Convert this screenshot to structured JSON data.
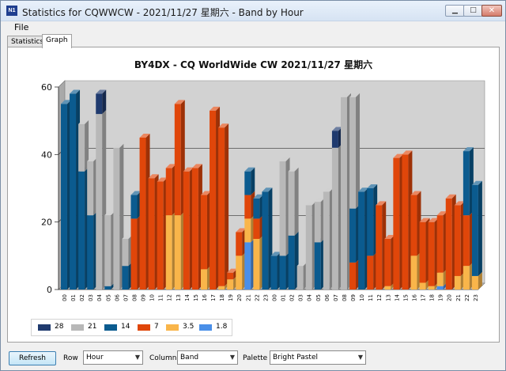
{
  "window": {
    "title": "Statistics for CQWWCW - 2021/11/27 星期六 - Band by Hour",
    "app_icon": "N1",
    "minimize_glyph": "▁",
    "maximize_glyph": "□",
    "close_glyph": "✕"
  },
  "menu": {
    "file_label": "File"
  },
  "tabs": [
    {
      "label": "Statistics",
      "active": false
    },
    {
      "label": "Graph",
      "active": true
    }
  ],
  "chart_data": {
    "type": "bar",
    "stacked": true,
    "style": "3d",
    "title": "BY4DX - CQ WorldWide CW 2021/11/27 星期六",
    "xlabel": "",
    "ylabel": "",
    "ylim": [
      0,
      60
    ],
    "yticks": [
      0,
      20,
      40,
      60
    ],
    "grid": true,
    "legend_position": "bottom-left",
    "categories": [
      "00",
      "01",
      "02",
      "03",
      "04",
      "05",
      "06",
      "07",
      "08",
      "09",
      "10",
      "11",
      "12",
      "13",
      "14",
      "15",
      "16",
      "17",
      "18",
      "19",
      "20",
      "21",
      "22",
      "23",
      "00",
      "01",
      "02",
      "03",
      "04",
      "05",
      "06",
      "07",
      "08",
      "09",
      "10",
      "11",
      "12",
      "13",
      "14",
      "15",
      "16",
      "17",
      "18",
      "19",
      "20",
      "21",
      "22",
      "23"
    ],
    "series": [
      {
        "name": "28",
        "color": "#1f3a6e",
        "values": [
          0,
          0,
          0,
          0,
          6,
          0,
          0,
          0,
          0,
          0,
          0,
          0,
          0,
          0,
          0,
          0,
          0,
          0,
          0,
          0,
          0,
          0,
          0,
          0,
          0,
          0,
          0,
          0,
          0,
          0,
          0,
          5,
          0,
          0,
          0,
          0,
          0,
          0,
          0,
          0,
          0,
          0,
          0,
          0,
          0,
          0,
          0,
          0
        ]
      },
      {
        "name": "21",
        "color": "#b8b8b8",
        "values": [
          0,
          0,
          14,
          16,
          52,
          21,
          42,
          8,
          0,
          0,
          0,
          0,
          0,
          0,
          0,
          0,
          0,
          0,
          0,
          0,
          0,
          0,
          0,
          0,
          0,
          28,
          19,
          7,
          25,
          12,
          29,
          42,
          57,
          33,
          0,
          0,
          0,
          0,
          0,
          0,
          0,
          0,
          0,
          0,
          0,
          0,
          0,
          0
        ]
      },
      {
        "name": "14",
        "color": "#0b5b8f",
        "values": [
          55,
          58,
          35,
          22,
          0,
          1,
          0,
          7,
          7,
          0,
          0,
          0,
          0,
          0,
          0,
          0,
          0,
          0,
          0,
          0,
          0,
          7,
          6,
          29,
          10,
          10,
          16,
          0,
          0,
          14,
          0,
          0,
          0,
          16,
          29,
          20,
          0,
          0,
          0,
          0,
          0,
          0,
          0,
          0,
          0,
          0,
          19,
          27
        ]
      },
      {
        "name": "7",
        "color": "#e0460a",
        "values": [
          0,
          0,
          0,
          0,
          0,
          0,
          0,
          0,
          21,
          45,
          33,
          32,
          14,
          33,
          35,
          36,
          22,
          53,
          47,
          2,
          7,
          7,
          6,
          0,
          0,
          0,
          0,
          0,
          0,
          0,
          0,
          0,
          0,
          8,
          0,
          10,
          25,
          14,
          39,
          40,
          18,
          18,
          19,
          17,
          27,
          21,
          15,
          0
        ]
      },
      {
        "name": "3.5",
        "color": "#f9b54a",
        "values": [
          0,
          0,
          0,
          0,
          0,
          0,
          0,
          0,
          0,
          0,
          0,
          0,
          22,
          22,
          0,
          0,
          6,
          0,
          1,
          3,
          10,
          7,
          15,
          0,
          0,
          0,
          0,
          0,
          0,
          0,
          0,
          0,
          0,
          0,
          0,
          0,
          0,
          1,
          0,
          0,
          10,
          2,
          1,
          4,
          0,
          4,
          7,
          4
        ]
      },
      {
        "name": "1.8",
        "color": "#4a8fe8",
        "values": [
          0,
          0,
          0,
          0,
          0,
          0,
          0,
          0,
          0,
          0,
          0,
          0,
          0,
          0,
          0,
          0,
          0,
          0,
          0,
          0,
          0,
          14,
          0,
          0,
          0,
          0,
          0,
          0,
          0,
          0,
          0,
          0,
          0,
          0,
          0,
          0,
          0,
          0,
          0,
          0,
          0,
          0,
          0,
          1,
          0,
          0,
          0,
          0
        ]
      }
    ]
  },
  "controls": {
    "refresh_label": "Refresh",
    "row_label": "Row",
    "row_value": "Hour",
    "column_label": "Column",
    "column_value": "Band",
    "palette_label": "Palette",
    "palette_value": "Bright Pastel",
    "caret_glyph": "▼"
  }
}
